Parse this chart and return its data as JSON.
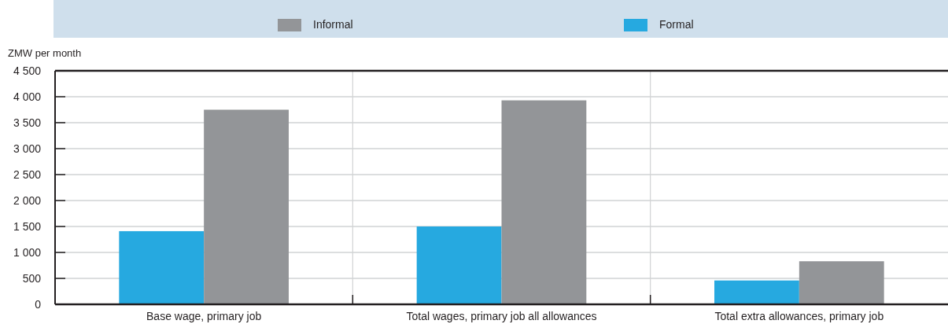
{
  "chart_data": {
    "type": "bar",
    "ylabel": "ZMW per month",
    "categories": [
      "Base wage, primary job",
      "Total wages, primary job all allowances",
      "Total extra allowances, primary job"
    ],
    "series": [
      {
        "name": "Formal",
        "color": "#26a9e0",
        "values": [
          1410,
          1500,
          460
        ]
      },
      {
        "name": "Informal",
        "color": "#939598",
        "values": [
          3750,
          3930,
          830
        ]
      }
    ],
    "ylim": [
      0,
      4500
    ],
    "yticks": [
      0,
      {
        "value": 500,
        "label": "500"
      },
      {
        "value": 1000,
        "label": "1 000"
      },
      {
        "value": 1500,
        "label": "1 500"
      },
      {
        "value": 2000,
        "label": "2 000"
      },
      {
        "value": 2500,
        "label": "2 500"
      },
      {
        "value": 3000,
        "label": "3 000"
      },
      {
        "value": 3500,
        "label": "3 500"
      },
      {
        "value": 4000,
        "label": "4 000"
      },
      {
        "value": 4500,
        "label": "4 500"
      }
    ],
    "grid": true,
    "legend": "top"
  }
}
